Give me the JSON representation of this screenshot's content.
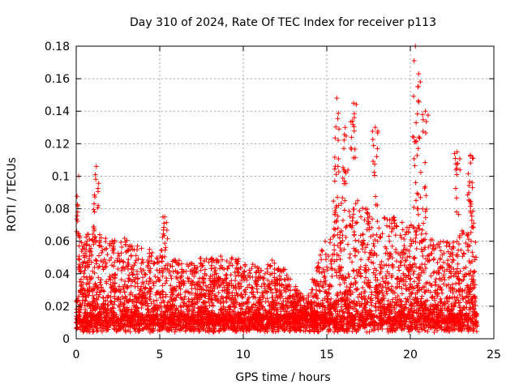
{
  "chart_data": {
    "type": "scatter",
    "title": "Day 310 of 2024, Rate Of TEC Index for receiver p113",
    "xlabel": "GPS time / hours",
    "ylabel": "ROTI / TECUs",
    "xlim": [
      0,
      25
    ],
    "ylim": [
      0,
      0.18
    ],
    "x_ticks": [
      0,
      5,
      10,
      15,
      20,
      25
    ],
    "y_ticks": [
      0,
      0.02,
      0.04,
      0.06,
      0.08,
      0.1,
      0.12,
      0.14,
      0.16,
      0.18
    ],
    "grid": true,
    "marker": "plus",
    "color": "#ff0000",
    "peaks": [
      {
        "x": 0.15,
        "y": 0.1
      },
      {
        "x": 1.2,
        "y": 0.106
      },
      {
        "x": 5.3,
        "y": 0.075
      },
      {
        "x": 15.6,
        "y": 0.148
      },
      {
        "x": 16.1,
        "y": 0.13
      },
      {
        "x": 16.6,
        "y": 0.145
      },
      {
        "x": 17.9,
        "y": 0.13
      },
      {
        "x": 20.3,
        "y": 0.18
      },
      {
        "x": 20.5,
        "y": 0.163
      },
      {
        "x": 20.9,
        "y": 0.14
      },
      {
        "x": 22.8,
        "y": 0.115
      },
      {
        "x": 23.6,
        "y": 0.113
      }
    ],
    "envelope": [
      {
        "x": 0,
        "y": 0.055
      },
      {
        "x": 1,
        "y": 0.07
      },
      {
        "x": 2,
        "y": 0.06
      },
      {
        "x": 3,
        "y": 0.062
      },
      {
        "x": 4,
        "y": 0.055
      },
      {
        "x": 5,
        "y": 0.055
      },
      {
        "x": 6,
        "y": 0.048
      },
      {
        "x": 7,
        "y": 0.05
      },
      {
        "x": 8,
        "y": 0.05
      },
      {
        "x": 9,
        "y": 0.052
      },
      {
        "x": 10,
        "y": 0.048
      },
      {
        "x": 11,
        "y": 0.045
      },
      {
        "x": 12,
        "y": 0.05
      },
      {
        "x": 13,
        "y": 0.035
      },
      {
        "x": 13.8,
        "y": 0.025
      },
      {
        "x": 14.5,
        "y": 0.05
      },
      {
        "x": 15,
        "y": 0.065
      },
      {
        "x": 15.5,
        "y": 0.09
      },
      {
        "x": 16,
        "y": 0.085
      },
      {
        "x": 17,
        "y": 0.085
      },
      {
        "x": 18,
        "y": 0.075
      },
      {
        "x": 19,
        "y": 0.075
      },
      {
        "x": 20,
        "y": 0.07
      },
      {
        "x": 20.5,
        "y": 0.085
      },
      {
        "x": 21,
        "y": 0.065
      },
      {
        "x": 22,
        "y": 0.06
      },
      {
        "x": 23,
        "y": 0.065
      },
      {
        "x": 23.7,
        "y": 0.085
      },
      {
        "x": 24,
        "y": 0.05
      }
    ]
  }
}
